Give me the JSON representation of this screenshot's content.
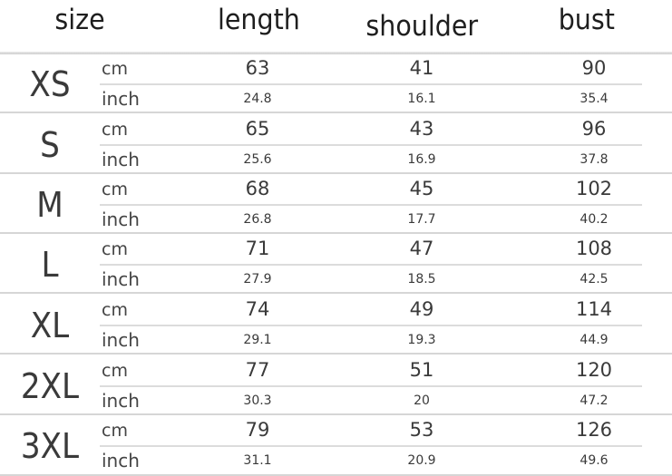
{
  "headers": {
    "size": "size",
    "length": "length",
    "shoulder": "shoulder",
    "bust": "bust"
  },
  "units": {
    "cm": "cm",
    "inch": "inch"
  },
  "rows": [
    {
      "size": "XS",
      "cm": {
        "length": "63",
        "shoulder": "41",
        "bust": "90"
      },
      "inch": {
        "length": "24.8",
        "shoulder": "16.1",
        "bust": "35.4"
      }
    },
    {
      "size": "S",
      "cm": {
        "length": "65",
        "shoulder": "43",
        "bust": "96"
      },
      "inch": {
        "length": "25.6",
        "shoulder": "16.9",
        "bust": "37.8"
      }
    },
    {
      "size": "M",
      "cm": {
        "length": "68",
        "shoulder": "45",
        "bust": "102"
      },
      "inch": {
        "length": "26.8",
        "shoulder": "17.7",
        "bust": "40.2"
      }
    },
    {
      "size": "L",
      "cm": {
        "length": "71",
        "shoulder": "47",
        "bust": "108"
      },
      "inch": {
        "length": "27.9",
        "shoulder": "18.5",
        "bust": "42.5"
      }
    },
    {
      "size": "XL",
      "cm": {
        "length": "74",
        "shoulder": "49",
        "bust": "114"
      },
      "inch": {
        "length": "29.1",
        "shoulder": "19.3",
        "bust": "44.9"
      }
    },
    {
      "size": "2XL",
      "cm": {
        "length": "77",
        "shoulder": "51",
        "bust": "120"
      },
      "inch": {
        "length": "30.3",
        "shoulder": "20",
        "bust": "47.2"
      }
    },
    {
      "size": "3XL",
      "cm": {
        "length": "79",
        "shoulder": "53",
        "bust": "126"
      },
      "inch": {
        "length": "31.1",
        "shoulder": "20.9",
        "bust": "49.6"
      }
    }
  ]
}
